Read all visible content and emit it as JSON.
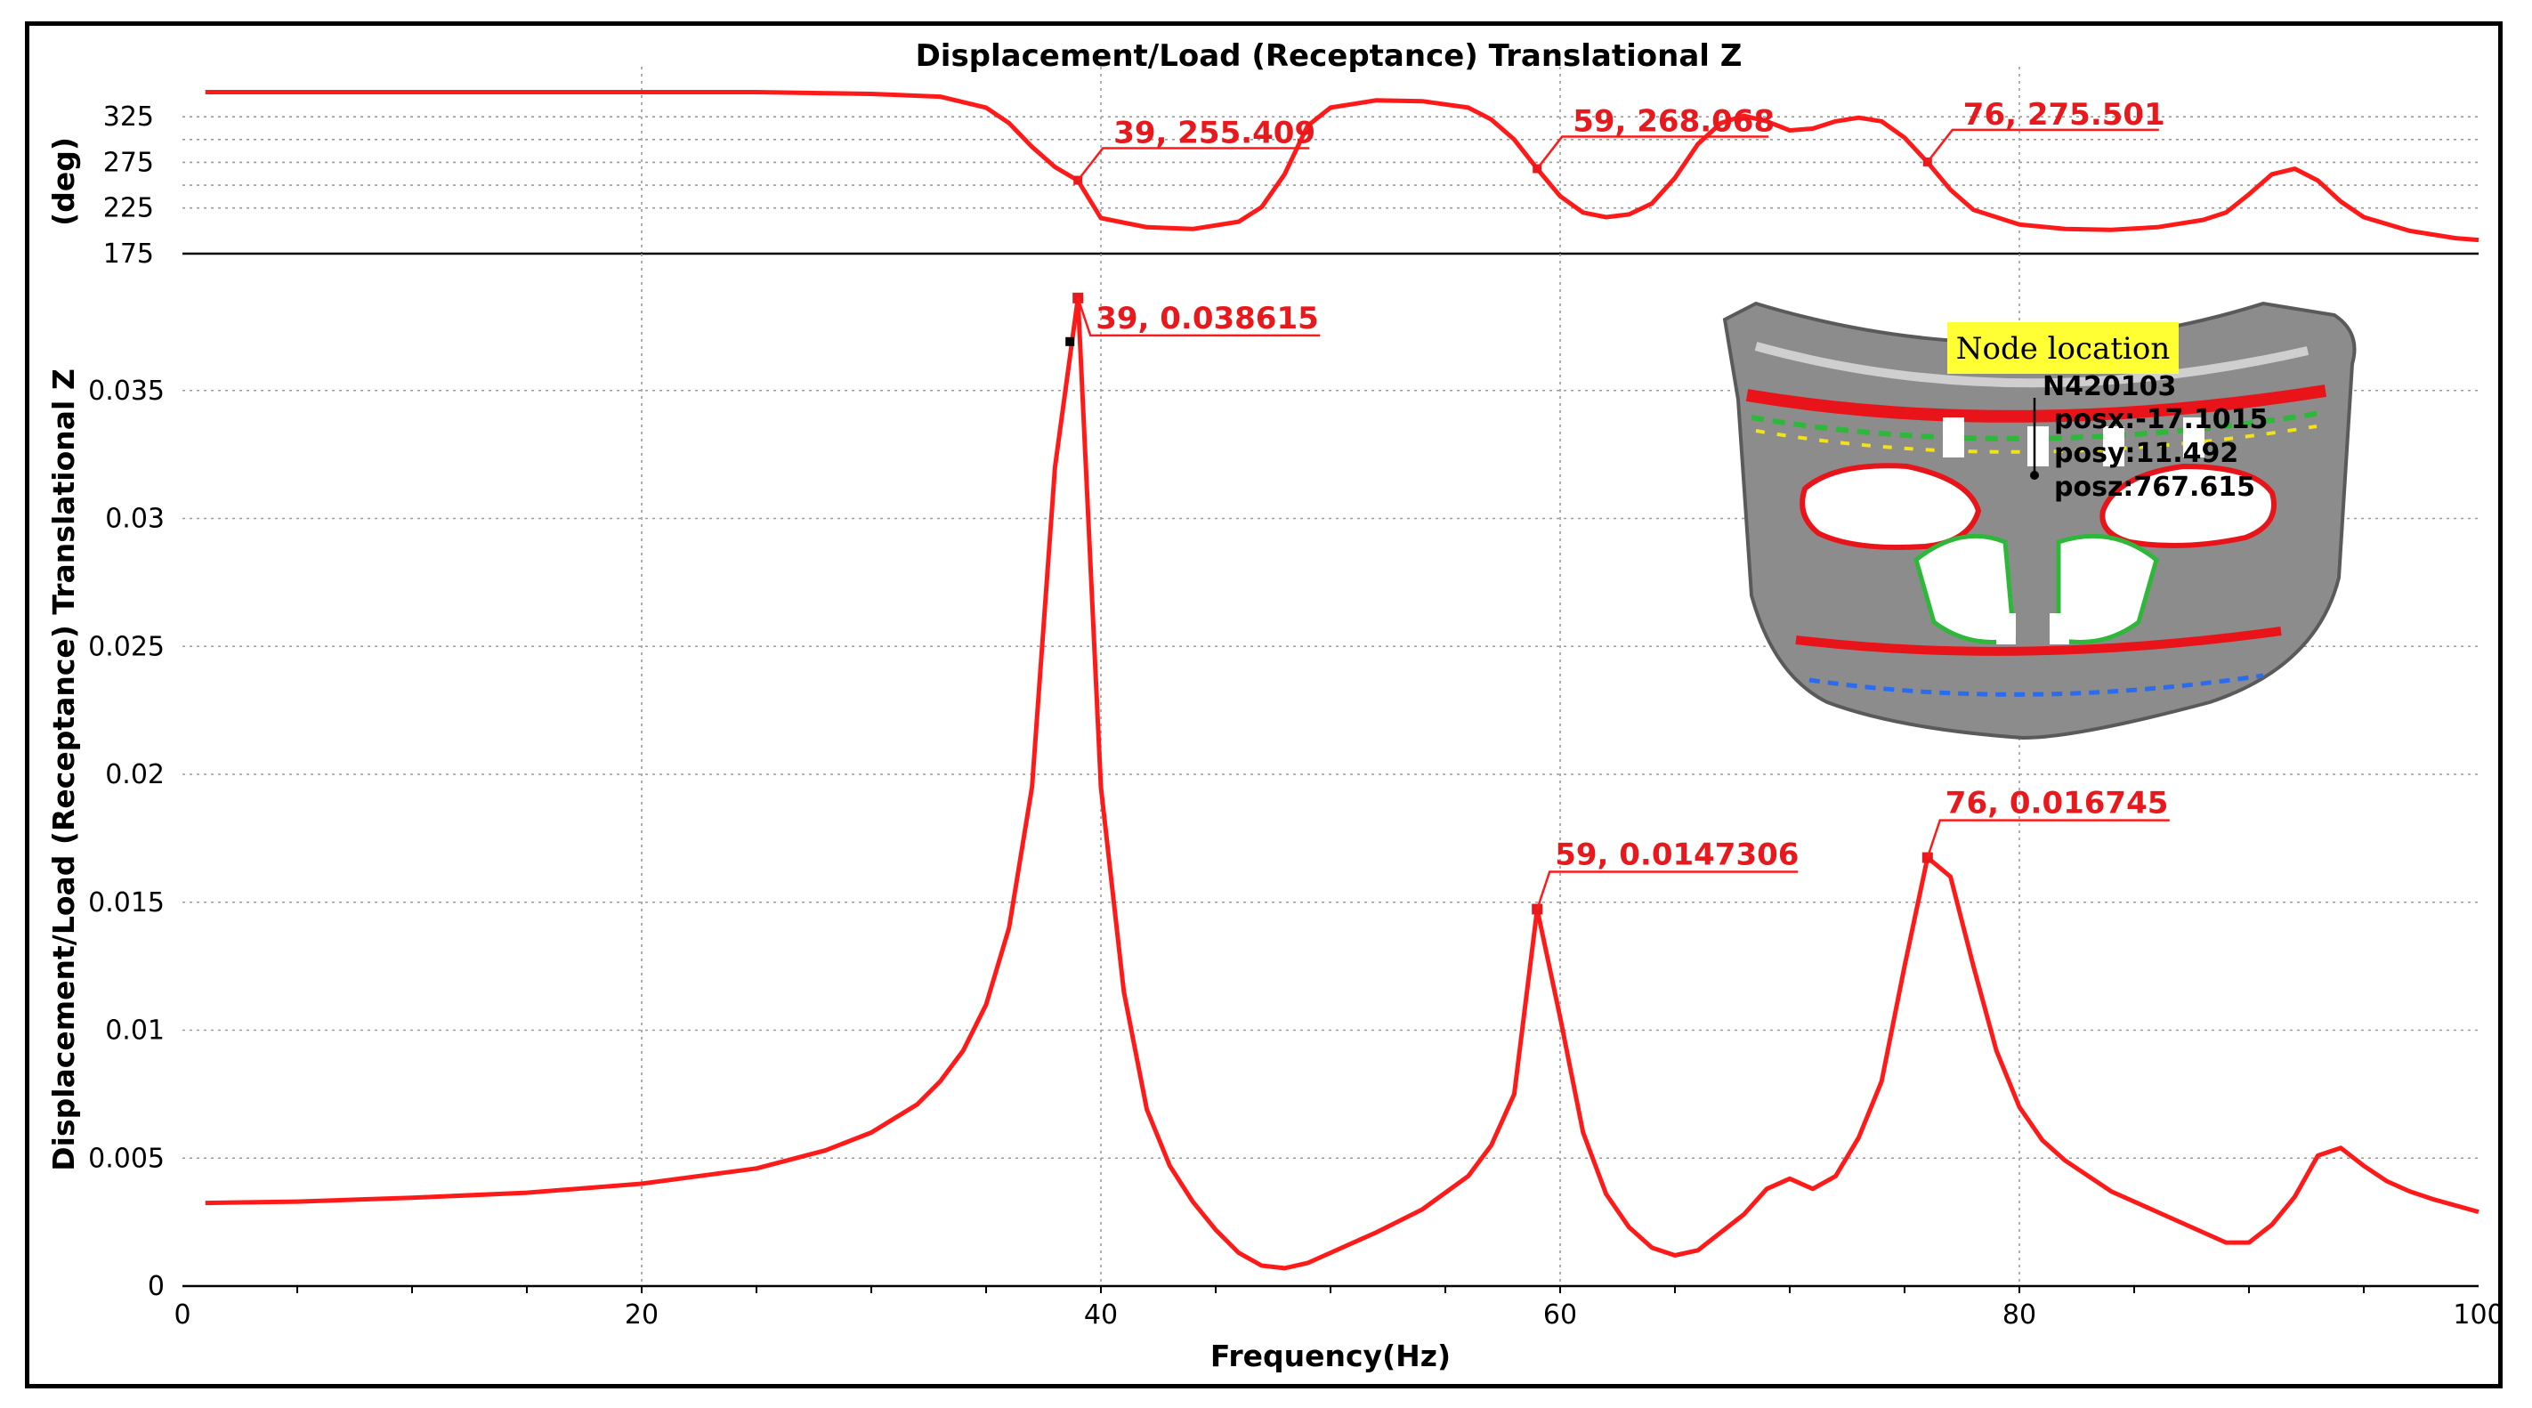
{
  "chart_data": [
    {
      "type": "line",
      "title": "Displacement/Load (Receptance) Translational Z",
      "ylabel": "(deg)",
      "xlabel": "",
      "xlim": [
        0,
        100
      ],
      "ylim": [
        175,
        370
      ],
      "yticks": [
        175,
        225,
        275,
        325
      ],
      "grid": true,
      "x": [
        1,
        5,
        10,
        15,
        20,
        25,
        30,
        33,
        35,
        36,
        37,
        38,
        39,
        40,
        42,
        44,
        46,
        47,
        48,
        49,
        50,
        52,
        54,
        56,
        57,
        58,
        59,
        60,
        61,
        62,
        63,
        64,
        65,
        66,
        67,
        68,
        69,
        70,
        71,
        72,
        73,
        74,
        75,
        76,
        77,
        78,
        80,
        82,
        84,
        86,
        88,
        89,
        90,
        91,
        92,
        93,
        94,
        95,
        97,
        99,
        100
      ],
      "y": [
        352,
        352,
        352,
        352,
        352,
        352,
        350,
        347,
        335,
        318,
        292,
        270,
        255,
        214,
        204,
        202,
        210,
        226,
        262,
        315,
        335,
        343,
        342,
        335,
        322,
        300,
        268,
        238,
        220,
        215,
        218,
        230,
        258,
        295,
        318,
        326,
        320,
        310,
        312,
        320,
        324,
        320,
        302,
        275,
        245,
        223,
        207,
        202,
        201,
        204,
        212,
        220,
        240,
        262,
        268,
        255,
        232,
        215,
        200,
        192,
        190
      ],
      "annotations": [
        {
          "label": "39, 255.409",
          "x": 39,
          "y": 255.409
        },
        {
          "label": "59, 268.068",
          "x": 59,
          "y": 268.068
        },
        {
          "label": "76, 275.501",
          "x": 76,
          "y": 275.501
        }
      ]
    },
    {
      "type": "line",
      "title": "",
      "ylabel": "Displacement/Load (Receptance) Translational Z",
      "xlabel": "Frequency(Hz)",
      "xlim": [
        0,
        100
      ],
      "ylim": [
        0,
        0.04
      ],
      "xticks": [
        0,
        20,
        40,
        60,
        80,
        100
      ],
      "yticks": [
        0,
        0.005,
        0.01,
        0.015,
        0.02,
        0.025,
        0.03,
        0.035
      ],
      "grid": true,
      "x": [
        1,
        5,
        10,
        15,
        20,
        25,
        28,
        30,
        32,
        33,
        34,
        35,
        36,
        37,
        38,
        39,
        40,
        41,
        42,
        43,
        44,
        45,
        46,
        47,
        48,
        49,
        50,
        52,
        54,
        56,
        57,
        58,
        59,
        60,
        61,
        62,
        63,
        64,
        65,
        66,
        67,
        68,
        69,
        70,
        71,
        72,
        73,
        74,
        75,
        76,
        77,
        78,
        79,
        80,
        81,
        82,
        84,
        86,
        88,
        89,
        90,
        91,
        92,
        93,
        94,
        95,
        96,
        97,
        98,
        100
      ],
      "y": [
        0.00325,
        0.0033,
        0.00345,
        0.00365,
        0.004,
        0.0046,
        0.0053,
        0.006,
        0.0071,
        0.008,
        0.0092,
        0.011,
        0.014,
        0.0195,
        0.032,
        0.038615,
        0.0195,
        0.0115,
        0.0069,
        0.0047,
        0.0033,
        0.0022,
        0.0013,
        0.0008,
        0.0007,
        0.0009,
        0.0013,
        0.0021,
        0.003,
        0.0043,
        0.0055,
        0.0075,
        0.0147306,
        0.0105,
        0.006,
        0.0036,
        0.0023,
        0.0015,
        0.0012,
        0.0014,
        0.0021,
        0.0028,
        0.0038,
        0.0042,
        0.0038,
        0.0043,
        0.0058,
        0.008,
        0.0125,
        0.016745,
        0.016,
        0.0125,
        0.0092,
        0.007,
        0.0057,
        0.0049,
        0.0037,
        0.0029,
        0.0021,
        0.0017,
        0.0017,
        0.0024,
        0.0035,
        0.0051,
        0.0054,
        0.0047,
        0.0041,
        0.0037,
        0.0034,
        0.0029
      ],
      "annotations": [
        {
          "label": "39, 0.038615",
          "x": 39,
          "y": 0.038615
        },
        {
          "label": "59, 0.0147306",
          "x": 59,
          "y": 0.0147306
        },
        {
          "label": "76, 0.016745",
          "x": 76,
          "y": 0.016745
        }
      ]
    }
  ],
  "inset": {
    "title": "Node location",
    "node_id": "N420103",
    "posx": "posx:-17.1015",
    "posy": "posy:11.492",
    "posz": "posz:767.615",
    "colors": {
      "label_bg": "#ffff33",
      "mesh": "#8a8a8a",
      "hot": "#e8141a",
      "warm": "#f2e21a",
      "mid": "#2db83a",
      "cool": "#2a6cf0"
    }
  },
  "colors": {
    "curve": "#ff1a1a",
    "annotation": "#e8191d"
  }
}
